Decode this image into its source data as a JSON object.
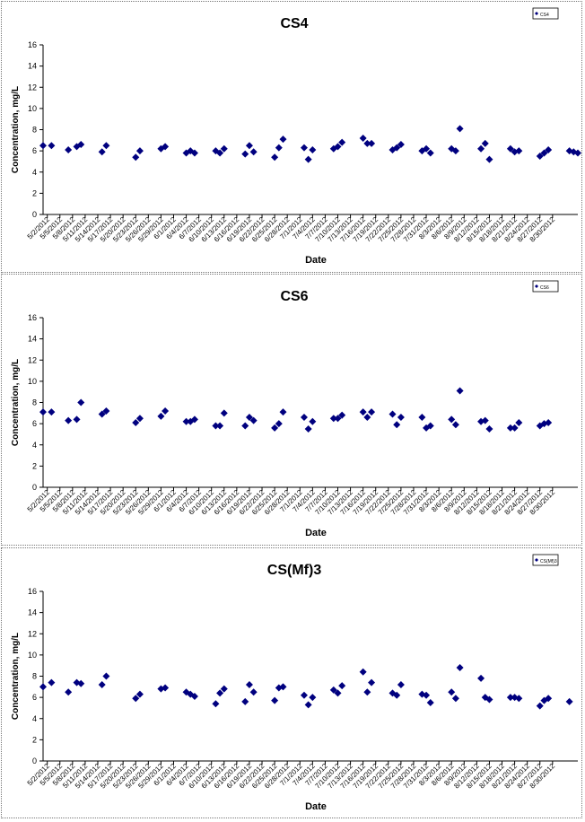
{
  "dates": [
    "5/2/2012",
    "5/5/2012",
    "5/8/2012",
    "5/11/2012",
    "5/14/2012",
    "5/17/2012",
    "5/20/2012",
    "5/23/2012",
    "5/26/2012",
    "5/29/2012",
    "6/1/2012",
    "6/4/2012",
    "6/7/2012",
    "6/10/2012",
    "6/13/2012",
    "6/16/2012",
    "6/19/2012",
    "6/22/2012",
    "6/25/2012",
    "6/28/2012",
    "7/1/2012",
    "7/4/2012",
    "7/7/2012",
    "7/10/2012",
    "7/13/2012",
    "7/16/2012",
    "7/19/2012",
    "7/22/2012",
    "7/25/2012",
    "7/28/2012",
    "7/31/2012",
    "8/3/2012",
    "8/6/2012",
    "8/9/2012",
    "8/12/2012",
    "8/15/2012",
    "8/18/2012",
    "8/21/2012",
    "8/24/2012",
    "8/27/2012",
    "8/30/2012"
  ],
  "chart_data": [
    {
      "type": "scatter",
      "title": "CS4",
      "xlabel": "Date",
      "ylabel": "Concentration, mg/L",
      "legend": "CS4",
      "legend_position": "top-right",
      "ylim": [
        0,
        16
      ],
      "yticks": [
        0,
        2,
        4,
        6,
        8,
        10,
        12,
        14,
        16
      ],
      "grid": false,
      "marker": "diamond",
      "color": "#00007f",
      "x": [
        "5/1/2012",
        "5/3/2012",
        "5/7/2012",
        "5/9/2012",
        "5/10/2012",
        "5/15/2012",
        "5/16/2012",
        "5/23/2012",
        "5/24/2012",
        "5/29/2012",
        "5/30/2012",
        "6/4/2012",
        "6/5/2012",
        "6/6/2012",
        "6/11/2012",
        "6/12/2012",
        "6/13/2012",
        "6/18/2012",
        "6/19/2012",
        "6/20/2012",
        "6/25/2012",
        "6/26/2012",
        "6/27/2012",
        "7/2/2012",
        "7/3/2012",
        "7/4/2012",
        "7/9/2012",
        "7/10/2012",
        "7/11/2012",
        "7/16/2012",
        "7/17/2012",
        "7/18/2012",
        "7/23/2012",
        "7/24/2012",
        "7/25/2012",
        "7/30/2012",
        "7/31/2012",
        "8/1/2012",
        "8/6/2012",
        "8/7/2012",
        "8/8/2012",
        "8/13/2012",
        "8/14/2012",
        "8/15/2012",
        "8/20/2012",
        "8/21/2012",
        "8/22/2012",
        "8/27/2012",
        "8/28/2012",
        "8/29/2012",
        "9/3/2012",
        "9/4/2012",
        "9/5/2012"
      ],
      "y": [
        6.5,
        6.5,
        6.1,
        6.4,
        6.6,
        5.9,
        6.5,
        5.4,
        6.0,
        6.2,
        6.4,
        5.8,
        6.0,
        5.8,
        6.0,
        5.8,
        6.2,
        5.7,
        6.5,
        5.9,
        5.4,
        6.3,
        7.1,
        6.3,
        5.2,
        6.1,
        6.2,
        6.4,
        6.8,
        7.2,
        6.7,
        6.7,
        6.1,
        6.3,
        6.6,
        6.0,
        6.2,
        5.8,
        6.2,
        6.0,
        8.1,
        6.2,
        6.7,
        5.2,
        6.2,
        5.9,
        6.0,
        5.5,
        5.8,
        6.1,
        6.0,
        5.9,
        5.8
      ]
    },
    {
      "type": "scatter",
      "title": "CS6",
      "xlabel": "Date",
      "ylabel": "Concentration, mg/L",
      "legend": "CS6",
      "legend_position": "top-right",
      "ylim": [
        0,
        16
      ],
      "yticks": [
        0,
        2,
        4,
        6,
        8,
        10,
        12,
        14,
        16
      ],
      "grid": false,
      "marker": "diamond",
      "color": "#00007f",
      "x": [
        "5/1/2012",
        "5/3/2012",
        "5/7/2012",
        "5/9/2012",
        "5/10/2012",
        "5/15/2012",
        "5/16/2012",
        "5/23/2012",
        "5/24/2012",
        "5/29/2012",
        "5/30/2012",
        "6/4/2012",
        "6/5/2012",
        "6/6/2012",
        "6/11/2012",
        "6/12/2012",
        "6/13/2012",
        "6/18/2012",
        "6/19/2012",
        "6/20/2012",
        "6/25/2012",
        "6/26/2012",
        "6/27/2012",
        "7/2/2012",
        "7/3/2012",
        "7/4/2012",
        "7/9/2012",
        "7/10/2012",
        "7/11/2012",
        "7/16/2012",
        "7/17/2012",
        "7/18/2012",
        "7/23/2012",
        "7/24/2012",
        "7/25/2012",
        "7/30/2012",
        "7/31/2012",
        "8/1/2012",
        "8/6/2012",
        "8/7/2012",
        "8/8/2012",
        "8/13/2012",
        "8/14/2012",
        "8/15/2012",
        "8/20/2012",
        "8/21/2012",
        "8/22/2012",
        "8/27/2012",
        "8/28/2012",
        "8/29/2012"
      ],
      "y": [
        7.1,
        7.1,
        6.3,
        6.4,
        8.0,
        6.9,
        7.2,
        6.1,
        6.5,
        6.7,
        7.2,
        6.2,
        6.2,
        6.4,
        5.8,
        5.8,
        7.0,
        5.8,
        6.6,
        6.3,
        5.6,
        6.0,
        7.1,
        6.6,
        5.5,
        6.2,
        6.5,
        6.5,
        6.8,
        7.1,
        6.6,
        7.1,
        6.9,
        5.9,
        6.6,
        6.6,
        5.6,
        5.8,
        6.4,
        5.9,
        9.1,
        6.2,
        6.3,
        5.5,
        5.6,
        5.6,
        6.1,
        5.8,
        6.0,
        6.1
      ]
    },
    {
      "type": "scatter",
      "title": "CS(Mf)3",
      "xlabel": "Date",
      "ylabel": "Concentration, mg/L",
      "legend": "CS(Mf)3",
      "legend_position": "top-right",
      "ylim": [
        0,
        16
      ],
      "yticks": [
        0,
        2,
        4,
        6,
        8,
        10,
        12,
        14,
        16
      ],
      "grid": false,
      "marker": "diamond",
      "color": "#00007f",
      "x": [
        "5/1/2012",
        "5/3/2012",
        "5/7/2012",
        "5/9/2012",
        "5/10/2012",
        "5/15/2012",
        "5/16/2012",
        "5/23/2012",
        "5/24/2012",
        "5/29/2012",
        "5/30/2012",
        "6/4/2012",
        "6/5/2012",
        "6/6/2012",
        "6/11/2012",
        "6/12/2012",
        "6/13/2012",
        "6/18/2012",
        "6/19/2012",
        "6/20/2012",
        "6/25/2012",
        "6/26/2012",
        "6/27/2012",
        "7/2/2012",
        "7/3/2012",
        "7/4/2012",
        "7/9/2012",
        "7/10/2012",
        "7/11/2012",
        "7/16/2012",
        "7/17/2012",
        "7/18/2012",
        "7/23/2012",
        "7/24/2012",
        "7/25/2012",
        "7/30/2012",
        "7/31/2012",
        "8/1/2012",
        "8/6/2012",
        "8/7/2012",
        "8/8/2012",
        "8/13/2012",
        "8/14/2012",
        "8/15/2012",
        "8/20/2012",
        "8/21/2012",
        "8/22/2012",
        "8/27/2012",
        "8/28/2012",
        "8/29/2012",
        "9/3/2012"
      ],
      "y": [
        7.0,
        7.4,
        6.5,
        7.4,
        7.3,
        7.2,
        8.0,
        5.9,
        6.3,
        6.8,
        6.9,
        6.5,
        6.3,
        6.1,
        5.4,
        6.4,
        6.8,
        5.6,
        7.2,
        6.5,
        5.7,
        6.9,
        7.0,
        6.2,
        5.3,
        6.0,
        6.7,
        6.4,
        7.1,
        8.4,
        6.5,
        7.4,
        6.4,
        6.2,
        7.2,
        6.3,
        6.2,
        5.5,
        6.5,
        5.9,
        8.8,
        7.8,
        6.0,
        5.8,
        6.0,
        6.0,
        5.9,
        5.2,
        5.7,
        5.9,
        5.6
      ]
    }
  ]
}
